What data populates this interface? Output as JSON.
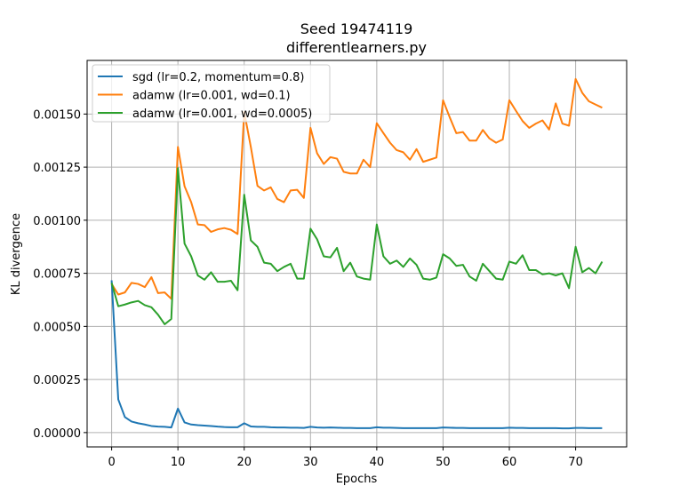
{
  "chart_data": {
    "type": "line",
    "title": "Seed 19474119",
    "subtitle": "differentlearners.py",
    "xlabel": "Epochs",
    "ylabel": "KL divergence",
    "xlim": [
      -3.7,
      77.7
    ],
    "ylim": [
      -6.75e-05,
      0.0017525
    ],
    "xticks": [
      0,
      10,
      20,
      30,
      40,
      50,
      60,
      70
    ],
    "xtick_labels": [
      "0",
      "10",
      "20",
      "30",
      "40",
      "50",
      "60",
      "70"
    ],
    "yticks": [
      0,
      0.00025,
      0.0005,
      0.00075,
      0.001,
      0.00125,
      0.0015
    ],
    "ytick_labels": [
      "0.00000",
      "0.00025",
      "0.00050",
      "0.00075",
      "0.00100",
      "0.00125",
      "0.00150"
    ],
    "grid": true,
    "legend_position": "top-left",
    "series": [
      {
        "name": "sgd (lr=0.2, momentum=0.8)",
        "color": "#1f77b4",
        "values": [
          0.000717,
          0.000156,
          7.3e-05,
          5.2e-05,
          4.4e-05,
          3.8e-05,
          3.1e-05,
          2.8e-05,
          2.7e-05,
          2.4e-05,
          0.000113,
          4.8e-05,
          3.8e-05,
          3.5e-05,
          3.3e-05,
          3.1e-05,
          2.8e-05,
          2.6e-05,
          2.5e-05,
          2.5e-05,
          4.4e-05,
          2.9e-05,
          2.7e-05,
          2.7e-05,
          2.5e-05,
          2.4e-05,
          2.4e-05,
          2.3e-05,
          2.3e-05,
          2.2e-05,
          2.7e-05,
          2.4e-05,
          2.3e-05,
          2.4e-05,
          2.3e-05,
          2.2e-05,
          2.2e-05,
          2.1e-05,
          2.1e-05,
          2.1e-05,
          2.5e-05,
          2.3e-05,
          2.3e-05,
          2.2e-05,
          2.1e-05,
          2.1e-05,
          2.1e-05,
          2.1e-05,
          2.1e-05,
          2.1e-05,
          2.4e-05,
          2.3e-05,
          2.2e-05,
          2.2e-05,
          2.1e-05,
          2.1e-05,
          2.1e-05,
          2.1e-05,
          2.1e-05,
          2.1e-05,
          2.3e-05,
          2.2e-05,
          2.2e-05,
          2.1e-05,
          2.1e-05,
          2.1e-05,
          2.1e-05,
          2.1e-05,
          2e-05,
          2e-05,
          2.2e-05,
          2.2e-05,
          2.1e-05,
          2.1e-05,
          2.1e-05
        ]
      },
      {
        "name": "adamw (lr=0.001, wd=0.1)",
        "color": "#ff7f0e",
        "values": [
          0.0007,
          0.00065,
          0.00066,
          0.000705,
          0.0007,
          0.000685,
          0.000732,
          0.000657,
          0.00066,
          0.00063,
          0.001345,
          0.00116,
          0.001085,
          0.00098,
          0.000977,
          0.000945,
          0.000957,
          0.000963,
          0.000955,
          0.000935,
          0.00151,
          0.001345,
          0.001162,
          0.00114,
          0.001155,
          0.0011,
          0.001085,
          0.00114,
          0.001143,
          0.001105,
          0.001435,
          0.001315,
          0.001265,
          0.001297,
          0.00129,
          0.001228,
          0.00122,
          0.00122,
          0.001285,
          0.00125,
          0.001457,
          0.00141,
          0.001365,
          0.00133,
          0.00132,
          0.001285,
          0.001335,
          0.001275,
          0.001285,
          0.001295,
          0.001565,
          0.001485,
          0.00141,
          0.001415,
          0.001375,
          0.001375,
          0.001425,
          0.001385,
          0.001365,
          0.00138,
          0.001565,
          0.001515,
          0.001467,
          0.001435,
          0.001455,
          0.00147,
          0.001427,
          0.00155,
          0.001455,
          0.001445,
          0.001665,
          0.0016,
          0.00156,
          0.001545,
          0.00153
        ]
      },
      {
        "name": "adamw (lr=0.001, wd=0.0005)",
        "color": "#2ca02c",
        "values": [
          0.000705,
          0.000595,
          0.000603,
          0.000613,
          0.00062,
          0.0006,
          0.00059,
          0.000555,
          0.00051,
          0.000535,
          0.001245,
          0.00089,
          0.00083,
          0.00074,
          0.00072,
          0.000755,
          0.00071,
          0.00071,
          0.000715,
          0.00067,
          0.00112,
          0.000905,
          0.000875,
          0.0008,
          0.000795,
          0.00076,
          0.00078,
          0.000795,
          0.000725,
          0.000725,
          0.00096,
          0.00091,
          0.00083,
          0.000825,
          0.00087,
          0.00076,
          0.0008,
          0.000735,
          0.000725,
          0.00072,
          0.00098,
          0.00083,
          0.000795,
          0.00081,
          0.00078,
          0.00082,
          0.00079,
          0.000725,
          0.00072,
          0.00073,
          0.00084,
          0.00082,
          0.000785,
          0.00079,
          0.000735,
          0.000715,
          0.000795,
          0.00076,
          0.000725,
          0.00072,
          0.000805,
          0.000795,
          0.000835,
          0.000765,
          0.000765,
          0.000745,
          0.00075,
          0.00074,
          0.00075,
          0.00068,
          0.000875,
          0.000755,
          0.000775,
          0.00075,
          0.000805
        ]
      }
    ]
  }
}
